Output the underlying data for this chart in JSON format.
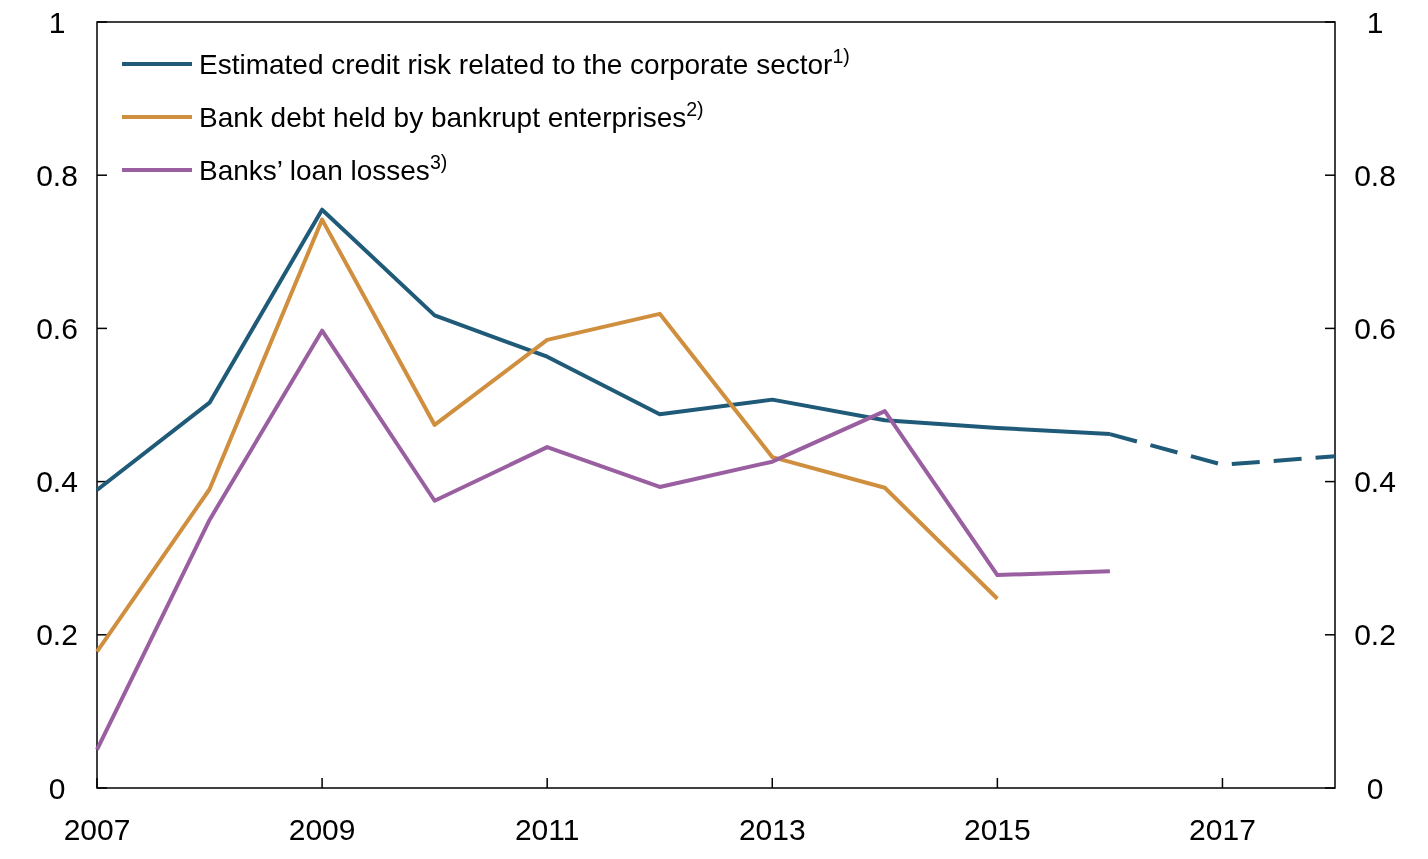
{
  "chart_data": {
    "type": "line",
    "x": [
      2007,
      2008,
      2009,
      2010,
      2011,
      2012,
      2013,
      2014,
      2015,
      2016
    ],
    "series": [
      {
        "name": "Estimated credit risk related to the corporate sector$^{1)}$",
        "color": "#1f5a78",
        "values": [
          0.389,
          0.503,
          0.755,
          0.617,
          0.563,
          0.488,
          0.507,
          0.48,
          0.47,
          0.462
        ]
      },
      {
        "name": "Bank debt held by bankrupt enterprises$^{2)}$",
        "color": "#d08f3f",
        "values": [
          0.178,
          0.39,
          0.742,
          0.474,
          0.585,
          0.619,
          0.432,
          0.392,
          0.247,
          null
        ]
      },
      {
        "name": "Banks’ loan losses$^{3)}$",
        "color": "#9a5fa0",
        "values": [
          0.05,
          0.35,
          0.597,
          0.375,
          0.445,
          0.393,
          0.426,
          0.492,
          0.278,
          0.283
        ]
      },
      {
        "color": "#1f5a78",
        "line_style": "dashed",
        "x": [
          2016,
          2017,
          2018
        ],
        "values": [
          0.462,
          0.422,
          0.433
        ]
      }
    ],
    "xlim": [
      2007,
      2018
    ],
    "xticks": [
      2007,
      2009,
      2011,
      2013,
      2015,
      2017
    ],
    "ylim": [
      0,
      1
    ],
    "yticks": [
      0,
      0.2,
      0.4,
      0.6,
      0.8,
      1
    ],
    "y2lim": [
      0,
      1
    ],
    "y2ticks": [
      0,
      0.2,
      0.4,
      0.6,
      0.8,
      1
    ],
    "grid": false,
    "legend": "top left",
    "marker": "none",
    "line_style": "solid"
  }
}
